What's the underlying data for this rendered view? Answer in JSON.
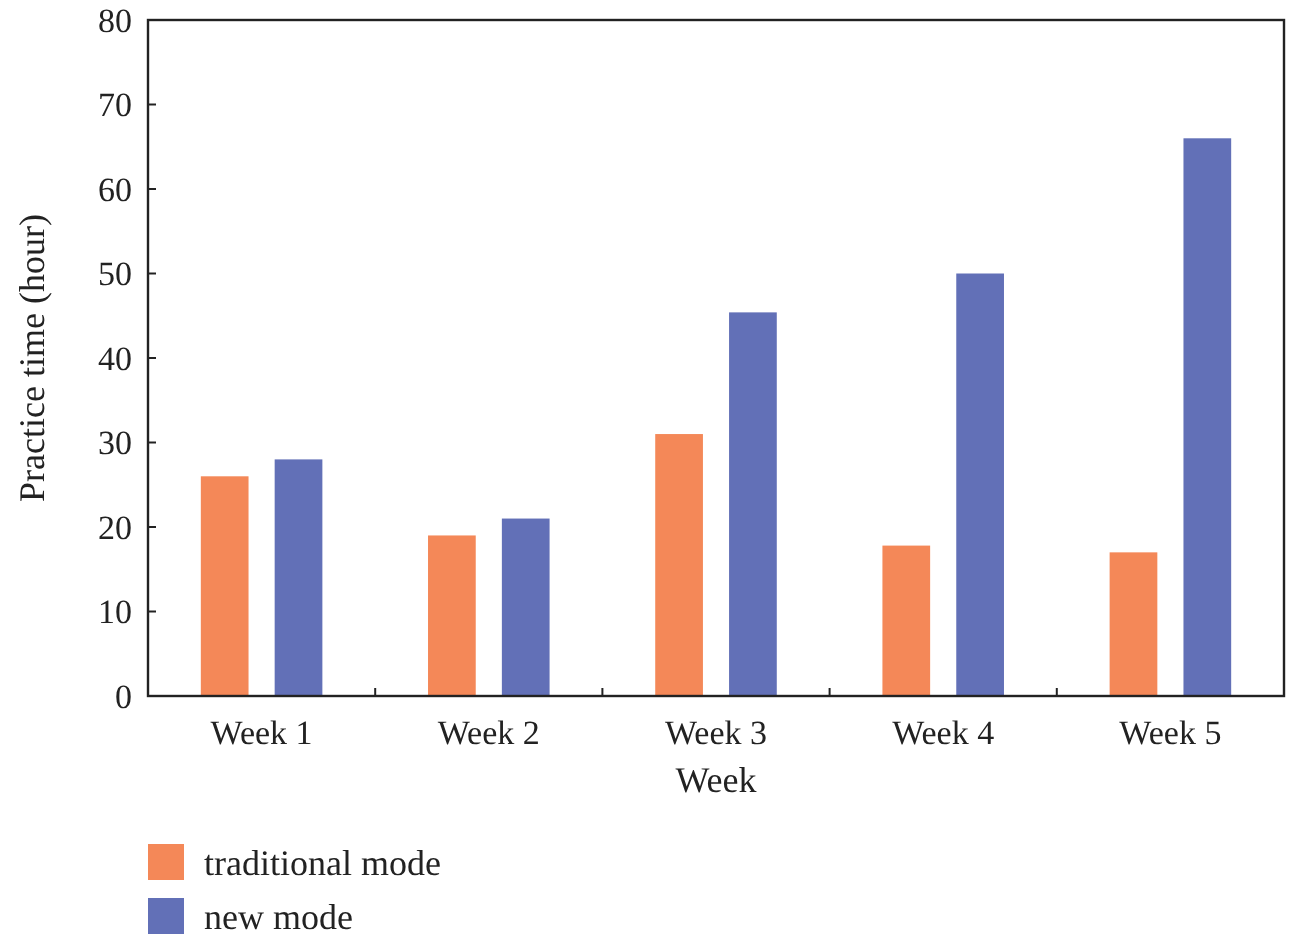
{
  "chart_data": {
    "type": "bar",
    "xlabel": "Week",
    "ylabel": "Practice time (hour)",
    "categories": [
      "Week 1",
      "Week 2",
      "Week 3",
      "Week 4",
      "Week 5"
    ],
    "series": [
      {
        "name": "traditional mode",
        "color": "#f48858",
        "values": [
          26,
          19,
          31,
          17.8,
          17
        ]
      },
      {
        "name": "new mode",
        "color": "#6270b7",
        "values": [
          28,
          21,
          45.4,
          50,
          66
        ]
      }
    ],
    "ylim": [
      0,
      80
    ],
    "yticks": [
      0,
      10,
      20,
      30,
      40,
      50,
      60,
      70,
      80
    ],
    "legend": "bottom left"
  }
}
